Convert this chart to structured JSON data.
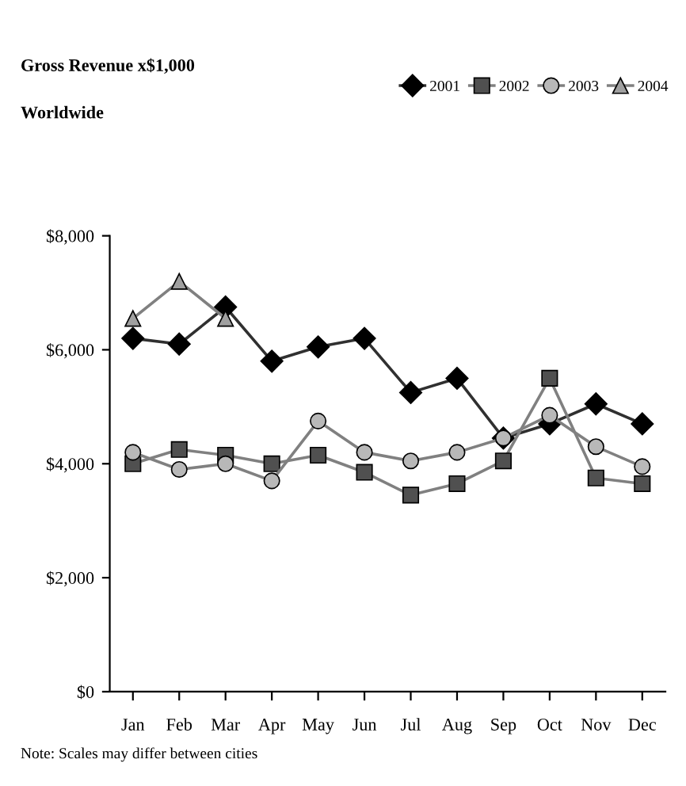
{
  "chart_data": {
    "type": "line",
    "title": "Gross Revenue x$1,000",
    "subtitle": "Worldwide",
    "annotations": [
      "Note: Scales may differ between cities"
    ],
    "categories": [
      "Jan",
      "Feb",
      "Mar",
      "Apr",
      "May",
      "Jun",
      "Jul",
      "Aug",
      "Sep",
      "Oct",
      "Nov",
      "Dec"
    ],
    "series": [
      {
        "name": "2001",
        "color": "#000000",
        "marker": "diamond",
        "values": [
          6200,
          6100,
          6750,
          5800,
          6050,
          6200,
          5250,
          5500,
          4450,
          4700,
          5050,
          4700
        ]
      },
      {
        "name": "2002",
        "color": "#505050",
        "marker": "square",
        "values": [
          4000,
          4250,
          4150,
          4000,
          4150,
          3850,
          3450,
          3650,
          4050,
          5500,
          3750,
          3650
        ]
      },
      {
        "name": "2003",
        "color": "#b8b8b8",
        "marker": "circle",
        "values": [
          4200,
          3900,
          4000,
          3700,
          4750,
          4200,
          4050,
          4200,
          4450,
          4850,
          4300,
          3950
        ]
      },
      {
        "name": "2004",
        "color": "#a0a0a0",
        "marker": "triangle",
        "values": [
          6550,
          7200,
          6550,
          null,
          null,
          null,
          null,
          null,
          null,
          null,
          null,
          null
        ]
      }
    ],
    "ylim": [
      0,
      8000
    ],
    "yticks": [
      {
        "value": 0,
        "label": "$0"
      },
      {
        "value": 2000,
        "label": "$2,000"
      },
      {
        "value": 4000,
        "label": "$4,000"
      },
      {
        "value": 6000,
        "label": "$6,000"
      },
      {
        "value": 8000,
        "label": "$8,000"
      }
    ],
    "grid": false,
    "legend": "top right",
    "line_style": "solid"
  }
}
